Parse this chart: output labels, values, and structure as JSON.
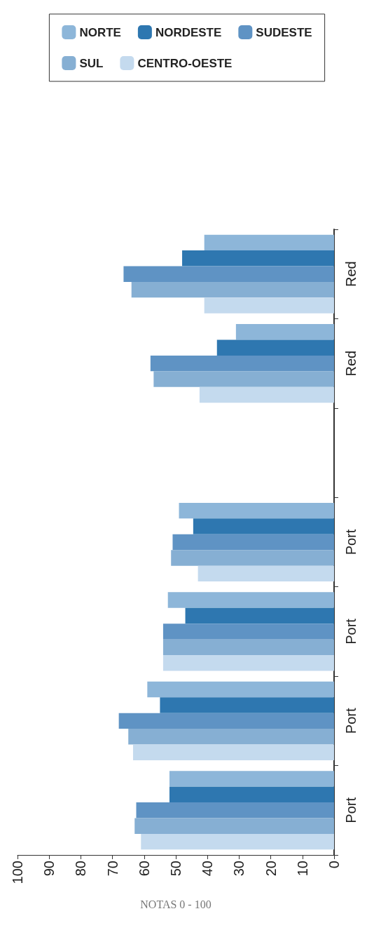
{
  "chart_data": {
    "type": "bar",
    "orientation": "horizontal",
    "xlabel": "NOTAS 0 - 100",
    "categories": [
      "Red",
      "Red",
      null,
      "Port",
      "Port",
      "Port",
      "Port"
    ],
    "series": [
      {
        "name": "NORTE",
        "color": "#8db6d9",
        "values": [
          41,
          31,
          null,
          49,
          52.5,
          59,
          52
        ]
      },
      {
        "name": "NORDESTE",
        "color": "#2e77b0",
        "values": [
          48,
          37,
          null,
          44.5,
          47,
          55,
          52
        ]
      },
      {
        "name": "SUDESTE",
        "color": "#5f93c4",
        "values": [
          66.5,
          58,
          null,
          51,
          54,
          68,
          62.5
        ]
      },
      {
        "name": "SUL",
        "color": "#86afd3",
        "values": [
          64,
          57,
          null,
          51.5,
          54,
          65,
          63
        ]
      },
      {
        "name": "CENTRO-OESTE",
        "color": "#c4daee",
        "values": [
          41,
          42.5,
          null,
          43,
          54,
          63.5,
          61
        ]
      }
    ],
    "xlim": [
      100,
      0
    ],
    "xticks": [
      100,
      90,
      80,
      70,
      60,
      50,
      40,
      30,
      20,
      10,
      0
    ],
    "grid": false,
    "legend": "top"
  }
}
